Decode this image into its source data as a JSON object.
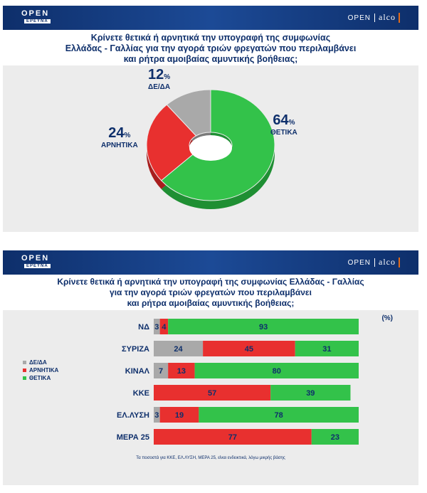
{
  "pie_panel": {
    "brand_left": "OPEN",
    "brand_left_sub": "ΕΡΕΥΝΑ",
    "brand_right": "OPEN",
    "brand_right_logo": "alco",
    "question_lines": [
      "Κρίνετε θετικά ή αρνητικά την υπογραφή της συμφωνίας",
      "Ελλάδας - Γαλλίας για την αγορά τριών φρεγατών που περιλαμβάνει",
      "και ρήτρα αμοιβαίας αμυντικής βοήθειας;"
    ],
    "percent_sign": "%",
    "colors": {
      "ΘΕΤΙΚΑ": "#33c24a",
      "ΑΡΝΗΤΙΚΑ": "#e8302f",
      "ΔΕ/ΔΑ": "#a9a9a9"
    }
  },
  "bar_panel": {
    "brand_left": "OPEN",
    "brand_left_sub": "ΕΡΕΥΝΑ",
    "brand_right": "OPEN",
    "brand_right_logo": "alco",
    "question_lines": [
      "Κρίνετε θετικά ή αρνητικά την υπογραφή της συμφωνίας Ελλάδας - Γαλλίας",
      "για την αγορά τριών φρεγατών που περιλαμβάνει",
      "και ρήτρα αμοιβαίας αμυντικής βοήθειας;"
    ],
    "unit": "(%)",
    "legend": [
      {
        "label": "ΔΕ/ΔΑ",
        "color": "#a9a9a9"
      },
      {
        "label": "ΑΡΝΗΤΙΚΑ",
        "color": "#e8302f"
      },
      {
        "label": "ΘΕΤΙΚΑ",
        "color": "#33c24a"
      }
    ],
    "footnote": "Τα ποσοστά για ΚΚΕ, ΕΛ.ΛΥΣΗ, ΜΕΡΑ 25, είναι ενδεικτικά, λόγω μικρής βάσης"
  },
  "chart_data": [
    {
      "type": "pie",
      "title": "Κρίνετε θετικά ή αρνητικά την υπογραφή της συμφωνίας Ελλάδας - Γαλλίας για την αγορά τριών φρεγατών που περιλαμβάνει και ρήτρα αμοιβαίας αμυντικής βοήθειας;",
      "categories": [
        "ΘΕΤΙΚΑ",
        "ΑΡΝΗΤΙΚΑ",
        "ΔΕ/ΔΑ"
      ],
      "values": [
        64,
        24,
        12
      ],
      "value_labels": [
        "64",
        "24",
        "12"
      ]
    },
    {
      "type": "bar",
      "stacked": true,
      "orientation": "horizontal",
      "title": "Κρίνετε θετικά ή αρνητικά την υπογραφή της συμφωνίας Ελλάδας - Γαλλίας για την αγορά τριών φρεγατών που περιλαμβάνει και ρήτρα αμοιβαίας αμυντικής βοήθειας;",
      "categories": [
        "ΝΔ",
        "ΣΥΡΙΖΑ",
        "ΚΙΝΑΛ",
        "ΚΚΕ",
        "ΕΛ.ΛΥΣΗ",
        "ΜΕΡΑ 25"
      ],
      "series": [
        {
          "name": "ΔΕ/ΔΑ",
          "values": [
            3,
            24,
            7,
            0,
            3,
            0
          ]
        },
        {
          "name": "ΑΡΝΗΤΙΚΑ",
          "values": [
            4,
            45,
            13,
            57,
            19,
            77
          ]
        },
        {
          "name": "ΘΕΤΙΚΑ",
          "values": [
            93,
            31,
            80,
            39,
            78,
            23
          ]
        }
      ],
      "legend_position": "left",
      "xlim": [
        0,
        100
      ]
    }
  ]
}
